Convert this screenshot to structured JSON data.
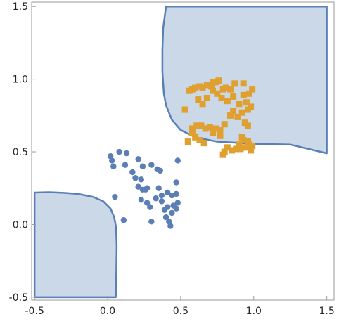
{
  "chart_data": {
    "type": "scatter",
    "title": "",
    "xlabel": "",
    "ylabel": "",
    "xlim": [
      -0.52,
      1.55
    ],
    "ylim": [
      -0.52,
      1.53
    ],
    "grid": false,
    "x_ticks": [
      {
        "value": -0.5,
        "label": "-0.5"
      },
      {
        "value": 0.0,
        "label": "0.0"
      },
      {
        "value": 0.5,
        "label": "0.5"
      },
      {
        "value": 1.0,
        "label": "1.0"
      },
      {
        "value": 1.5,
        "label": "1.5"
      }
    ],
    "y_ticks": [
      {
        "value": -0.5,
        "label": "-0.5"
      },
      {
        "value": 0.0,
        "label": "0.0"
      },
      {
        "value": 0.5,
        "label": "0.5"
      },
      {
        "value": 1.0,
        "label": "1.0"
      },
      {
        "value": 1.5,
        "label": "1.5"
      }
    ],
    "region_fill": "#cbd8e8",
    "region_stroke": "#5a7fb5",
    "regions": [
      {
        "curve": [
          [
            -0.5,
            0.22
          ],
          [
            -0.4,
            0.222
          ],
          [
            -0.3,
            0.218
          ],
          [
            -0.2,
            0.21
          ],
          [
            -0.1,
            0.19
          ],
          [
            -0.03,
            0.16
          ],
          [
            0.02,
            0.11
          ],
          [
            0.045,
            0.05
          ],
          [
            0.058,
            -0.02
          ],
          [
            0.062,
            -0.15
          ],
          [
            0.06,
            -0.3
          ],
          [
            0.056,
            -0.5
          ]
        ],
        "closing": [
          [
            -0.5,
            -0.5
          ]
        ]
      },
      {
        "curve": [
          [
            0.4,
            1.5
          ],
          [
            0.38,
            1.35
          ],
          [
            0.375,
            1.2
          ],
          [
            0.375,
            1.05
          ],
          [
            0.385,
            0.9
          ],
          [
            0.4,
            0.82
          ],
          [
            0.44,
            0.72
          ],
          [
            0.5,
            0.65
          ],
          [
            0.6,
            0.6
          ],
          [
            0.75,
            0.57
          ],
          [
            1.0,
            0.555
          ],
          [
            1.25,
            0.55
          ],
          [
            1.5,
            0.49
          ]
        ],
        "closing": [
          [
            1.5,
            1.5
          ]
        ]
      }
    ],
    "series": [
      {
        "marker": "circle",
        "color": "#5b7fb5",
        "points": [
          [
            0.02,
            0.47
          ],
          [
            0.08,
            0.5
          ],
          [
            0.13,
            0.49
          ],
          [
            0.03,
            0.44
          ],
          [
            0.04,
            0.4
          ],
          [
            0.12,
            0.41
          ],
          [
            0.17,
            0.36
          ],
          [
            0.21,
            0.45
          ],
          [
            0.24,
            0.4
          ],
          [
            0.3,
            0.41
          ],
          [
            0.34,
            0.38
          ],
          [
            0.36,
            0.37
          ],
          [
            0.48,
            0.44
          ],
          [
            0.19,
            0.32
          ],
          [
            0.23,
            0.31
          ],
          [
            0.21,
            0.26
          ],
          [
            0.26,
            0.24
          ],
          [
            0.27,
            0.25
          ],
          [
            0.35,
            0.25
          ],
          [
            0.47,
            0.29
          ],
          [
            0.05,
            0.19
          ],
          [
            0.23,
            0.17
          ],
          [
            0.27,
            0.15
          ],
          [
            0.29,
            0.12
          ],
          [
            0.33,
            0.18
          ],
          [
            0.37,
            0.16
          ],
          [
            0.41,
            0.22
          ],
          [
            0.44,
            0.2
          ],
          [
            0.47,
            0.21
          ],
          [
            0.48,
            0.15
          ],
          [
            0.45,
            0.13
          ],
          [
            0.41,
            0.12
          ],
          [
            0.39,
            0.1
          ],
          [
            0.4,
            0.05
          ],
          [
            0.44,
            0.08
          ],
          [
            0.47,
            0.11
          ],
          [
            0.42,
            0.02
          ],
          [
            0.43,
            -0.01
          ],
          [
            0.3,
            0.02
          ],
          [
            0.11,
            0.03
          ],
          [
            0.24,
            0.24
          ],
          [
            0.37,
            0.2
          ]
        ]
      },
      {
        "marker": "square",
        "color": "#e0a030",
        "points": [
          [
            0.58,
            0.93
          ],
          [
            0.6,
            0.94
          ],
          [
            0.63,
            0.95
          ],
          [
            0.65,
            0.94
          ],
          [
            0.68,
            0.96
          ],
          [
            0.71,
            0.95
          ],
          [
            0.72,
            0.98
          ],
          [
            0.74,
            0.98
          ],
          [
            0.76,
            0.99
          ],
          [
            0.79,
            0.93
          ],
          [
            0.81,
            0.94
          ],
          [
            0.84,
            0.93
          ],
          [
            0.87,
            0.97
          ],
          [
            0.93,
            0.97
          ],
          [
            0.56,
            0.92
          ],
          [
            0.62,
            0.86
          ],
          [
            0.65,
            0.83
          ],
          [
            0.68,
            0.87
          ],
          [
            0.72,
            0.92
          ],
          [
            0.75,
            0.9
          ],
          [
            0.78,
            0.87
          ],
          [
            0.82,
            0.85
          ],
          [
            0.86,
            0.88
          ],
          [
            0.9,
            0.83
          ],
          [
            0.95,
            0.84
          ],
          [
            0.99,
            0.93
          ],
          [
            0.97,
            0.9
          ],
          [
            0.93,
            0.89
          ],
          [
            0.53,
            0.79
          ],
          [
            0.58,
            0.66
          ],
          [
            0.61,
            0.68
          ],
          [
            0.64,
            0.68
          ],
          [
            0.67,
            0.66
          ],
          [
            0.7,
            0.67
          ],
          [
            0.74,
            0.66
          ],
          [
            0.77,
            0.65
          ],
          [
            0.8,
            0.69
          ],
          [
            0.84,
            0.75
          ],
          [
            0.86,
            0.78
          ],
          [
            0.89,
            0.74
          ],
          [
            0.92,
            0.77
          ],
          [
            0.96,
            0.79
          ],
          [
            0.98,
            0.81
          ],
          [
            0.94,
            0.7
          ],
          [
            0.96,
            0.68
          ],
          [
            0.58,
            0.63
          ],
          [
            0.6,
            0.6
          ],
          [
            0.63,
            0.58
          ],
          [
            0.66,
            0.56
          ],
          [
            0.55,
            0.57
          ],
          [
            0.72,
            0.63
          ],
          [
            0.77,
            0.61
          ],
          [
            0.82,
            0.53
          ],
          [
            0.85,
            0.51
          ],
          [
            0.88,
            0.52
          ],
          [
            0.91,
            0.52
          ],
          [
            0.94,
            0.53
          ],
          [
            0.97,
            0.55
          ],
          [
            0.99,
            0.54
          ],
          [
            0.93,
            0.58
          ],
          [
            0.96,
            0.57
          ],
          [
            0.9,
            0.55
          ],
          [
            0.8,
            0.5
          ],
          [
            0.79,
            0.48
          ],
          [
            0.92,
            0.6
          ],
          [
            0.98,
            0.51
          ]
        ]
      }
    ]
  }
}
